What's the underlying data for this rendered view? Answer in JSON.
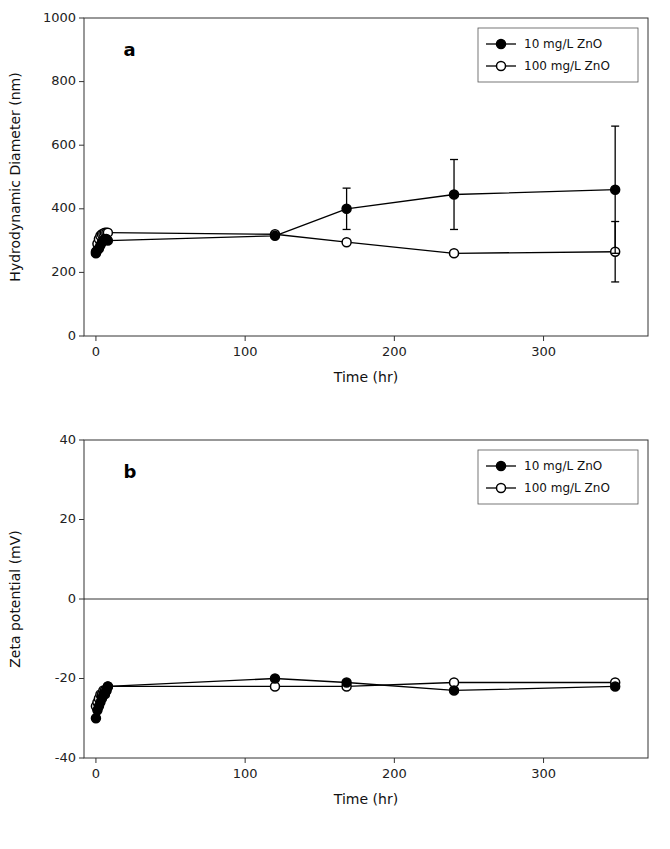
{
  "chart_data": [
    {
      "type": "line",
      "title": "a",
      "x_label": "Time (hr)",
      "y_label": "Hydrodynamic Diameter (nm)",
      "xlim": [
        -8,
        370
      ],
      "ylim": [
        0,
        1000
      ],
      "xticks": [
        0,
        100,
        200,
        300
      ],
      "yticks": [
        0,
        200,
        400,
        600,
        800,
        1000
      ],
      "grid": false,
      "legend": "upper right",
      "x": [
        0,
        1,
        2,
        3,
        4,
        5,
        6,
        7,
        8,
        120,
        168,
        240,
        348
      ],
      "series": [
        {
          "name": "10 mg/L ZnO",
          "color": "black",
          "marker": "circle",
          "values": [
            260,
            270,
            275,
            285,
            295,
            300,
            305,
            305,
            300,
            315,
            400,
            445,
            460
          ],
          "errors": [
            null,
            null,
            null,
            null,
            null,
            null,
            null,
            null,
            null,
            null,
            65,
            110,
            200
          ]
        },
        {
          "name": "100 mg/L ZnO",
          "color": "black",
          "marker": "open-circle",
          "values": [
            265,
            290,
            305,
            315,
            320,
            322,
            325,
            325,
            325,
            320,
            295,
            260,
            265
          ],
          "errors": [
            null,
            null,
            null,
            null,
            null,
            null,
            null,
            null,
            null,
            null,
            null,
            null,
            95
          ]
        }
      ]
    },
    {
      "type": "line",
      "title": "b",
      "x_label": "Time (hr)",
      "y_label": "Zeta potential (mV)",
      "xlim": [
        -8,
        370
      ],
      "ylim": [
        -40,
        40
      ],
      "xticks": [
        0,
        100,
        200,
        300
      ],
      "yticks": [
        -40,
        -20,
        0,
        20,
        40
      ],
      "grid": false,
      "legend": "upper right",
      "reference_line": 0,
      "x": [
        0,
        1,
        2,
        3,
        4,
        5,
        6,
        7,
        8,
        120,
        168,
        240,
        348
      ],
      "series": [
        {
          "name": "10 mg/L ZnO",
          "color": "black",
          "marker": "circle",
          "values": [
            -30,
            -28,
            -27,
            -26,
            -25,
            -24,
            -24,
            -23,
            -22,
            -20,
            -21,
            -23,
            -22
          ]
        },
        {
          "name": "100 mg/L ZnO",
          "color": "black",
          "marker": "open-circle",
          "values": [
            -27,
            -26,
            -25,
            -24,
            -24,
            -23,
            -23,
            -23,
            -22,
            -22,
            -22,
            -21,
            -21
          ]
        }
      ]
    }
  ]
}
